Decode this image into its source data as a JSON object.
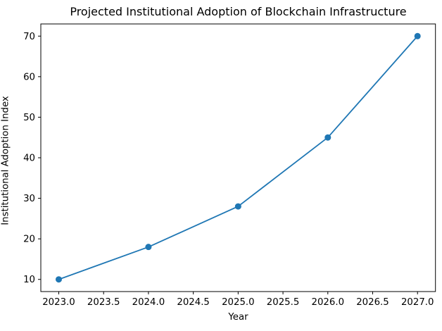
{
  "chart_data": {
    "type": "line",
    "title": "Projected Institutional Adoption of Blockchain Infrastructure",
    "xlabel": "Year",
    "ylabel": "Institutional Adoption Index",
    "x": [
      2023,
      2024,
      2025,
      2026,
      2027
    ],
    "series": [
      {
        "name": "Institutional Adoption Index",
        "values": [
          10,
          18,
          28,
          45,
          70
        ]
      }
    ],
    "xlim": [
      2022.8,
      2027.2
    ],
    "ylim": [
      7,
      73
    ],
    "xticks": [
      2023.0,
      2023.5,
      2024.0,
      2024.5,
      2025.0,
      2025.5,
      2026.0,
      2026.5,
      2027.0
    ],
    "xtick_labels": [
      "2023.0",
      "2023.5",
      "2024.0",
      "2024.5",
      "2025.0",
      "2025.5",
      "2026.0",
      "2026.5",
      "2027.0"
    ],
    "yticks": [
      10,
      20,
      30,
      40,
      50,
      60,
      70
    ],
    "ytick_labels": [
      "10",
      "20",
      "30",
      "40",
      "50",
      "60",
      "70"
    ],
    "grid": false,
    "legend": "none",
    "line_color": "#1f77b4",
    "marker": "circle",
    "axis_color": "#000000"
  }
}
